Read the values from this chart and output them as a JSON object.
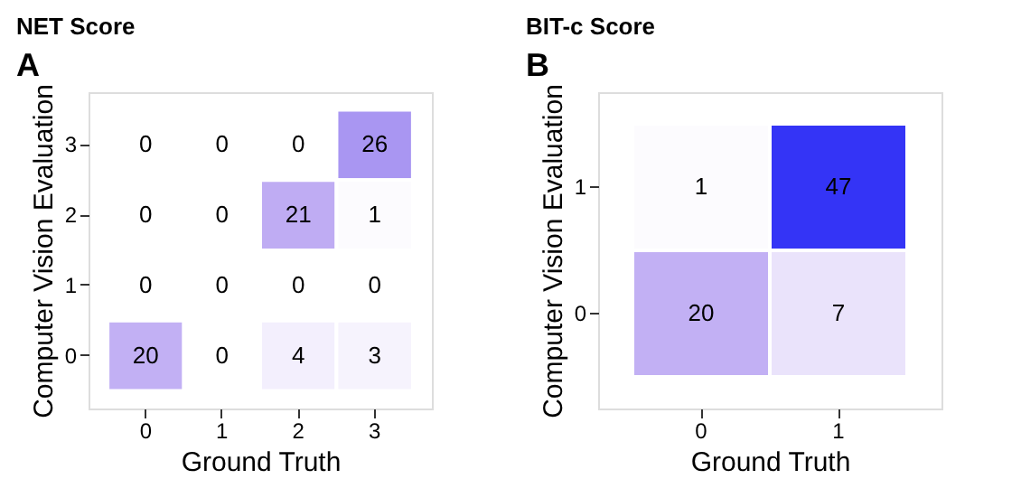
{
  "chart_data": [
    {
      "type": "heatmap",
      "title": "NET Score",
      "annotations": [
        "A"
      ],
      "xlabel": "Ground Truth",
      "ylabel": "Computer Vision Evaluation",
      "categories": [
        "0",
        "1",
        "2",
        "3"
      ],
      "y_categories": [
        "3",
        "2",
        "1",
        "0"
      ],
      "cells": [
        [
          0,
          0,
          0,
          26
        ],
        [
          0,
          0,
          21,
          1
        ],
        [
          0,
          0,
          0,
          0
        ],
        [
          20,
          0,
          4,
          3
        ]
      ],
      "data_labels": true,
      "grid": false,
      "legend": false
    },
    {
      "type": "heatmap",
      "title": "BIT-c Score",
      "annotations": [
        "B"
      ],
      "xlabel": "Ground Truth",
      "ylabel": "Computer Vision Evaluation",
      "categories": [
        "0",
        "1"
      ],
      "y_categories": [
        "1",
        "0"
      ],
      "cells": [
        [
          1,
          47
        ],
        [
          20,
          7
        ]
      ],
      "data_labels": true,
      "grid": false,
      "legend": false
    }
  ]
}
